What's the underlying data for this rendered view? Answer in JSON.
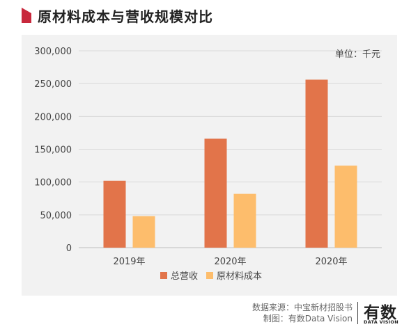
{
  "title": "原材料成本与营收规模对比",
  "accent_color": "#c8283c",
  "chart_data": {
    "type": "bar",
    "categories": [
      "2019年",
      "2020年",
      "2020年"
    ],
    "series": [
      {
        "name": "总营收",
        "values": [
          102000,
          166000,
          256000
        ],
        "color": "#e2744a"
      },
      {
        "name": "原材料成本",
        "values": [
          48000,
          82000,
          125000
        ],
        "color": "#fdbd6c"
      }
    ],
    "ylim": [
      0,
      300000
    ],
    "yticks": [
      0,
      50000,
      100000,
      150000,
      200000,
      250000,
      300000
    ],
    "ytick_labels": [
      "0",
      "50,000",
      "100,000",
      "150,000",
      "200,000",
      "250,000",
      "300,000"
    ],
    "unit_label": "单位：千元",
    "grid": true,
    "legend_position": "bottom"
  },
  "footer": {
    "source": "数据来源：中宝新材招股书",
    "maker": "制图：有数Data Vision"
  },
  "logo": {
    "main": "有数",
    "sub": "DATA VISION"
  }
}
